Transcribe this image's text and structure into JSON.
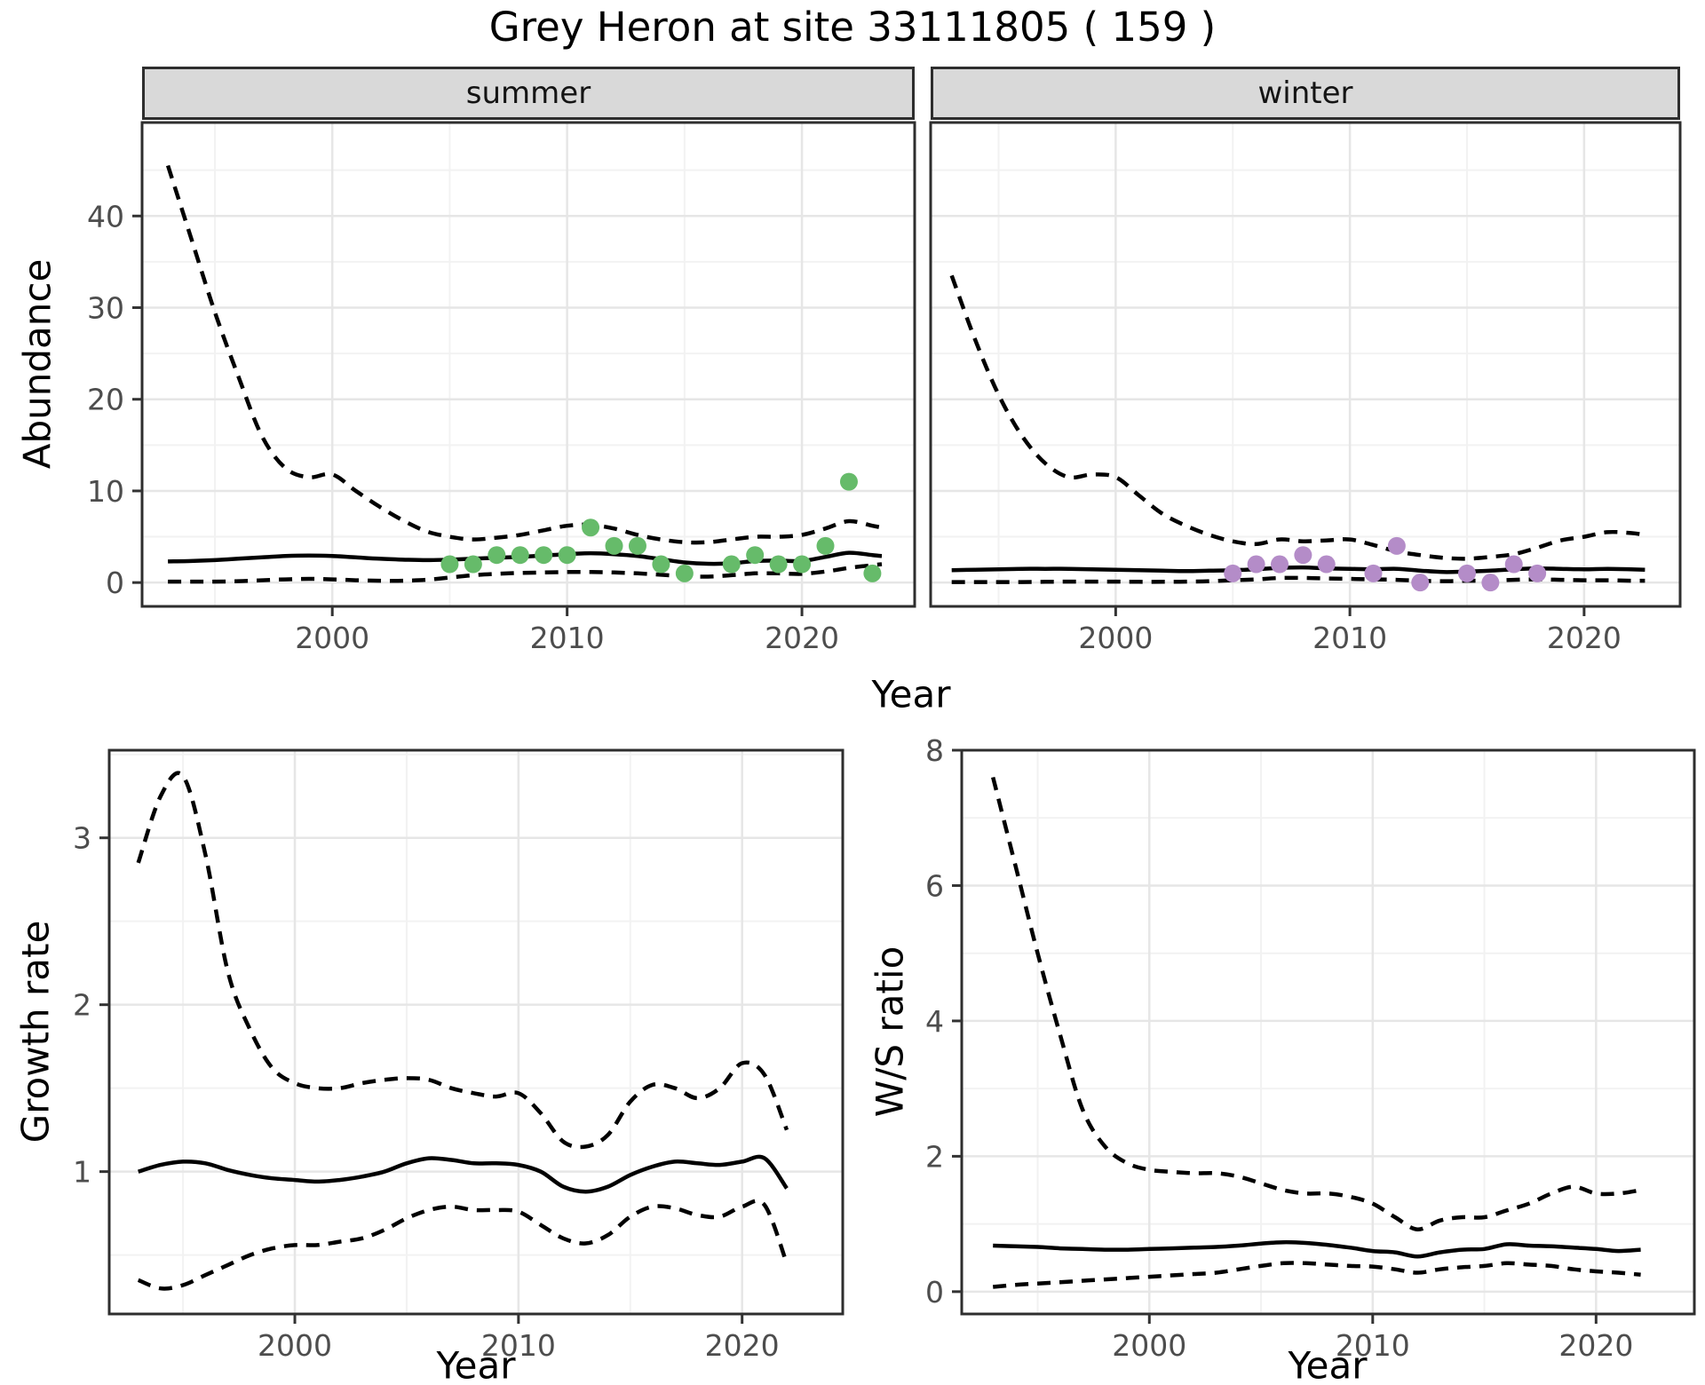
{
  "title": "Grey Heron at site 33111805 ( 159 )",
  "colors": {
    "point_summer": "#66bb6a",
    "point_winter": "#b48cc8",
    "line": "#000000",
    "strip_background": "#d9d9d9",
    "grid_major": "#e6e6e6",
    "grid_minor": "#f2f2f2",
    "tick_text": "#4d4d4d",
    "panel_border": "#2e2e2e"
  },
  "chart_data": [
    {
      "id": "abundance-summer",
      "type": "line",
      "facet": "summer",
      "xlabel": "Year",
      "ylabel": "Abundance",
      "x_domain": [
        1991.9,
        2024.8
      ],
      "y_domain": [
        -2.6,
        50.2
      ],
      "xticks": [
        2000,
        2010,
        2020
      ],
      "yticks": [
        0,
        10,
        20,
        30,
        40
      ],
      "grid": true,
      "legend": "none",
      "series": [
        {
          "name": "upper-95ci",
          "style": "dashed",
          "x": [
            1993,
            1994,
            1995,
            1996,
            1997,
            1998,
            1999,
            2000,
            2001,
            2002,
            2003,
            2004,
            2005,
            2006,
            2007,
            2008,
            2009,
            2010,
            2011,
            2012,
            2013,
            2014,
            2015,
            2016,
            2017,
            2018,
            2019,
            2020,
            2021,
            2022,
            2023,
            2023.4
          ],
          "y": [
            45.5,
            37.5,
            29.5,
            22.5,
            16.0,
            12.5,
            11.5,
            11.8,
            10.0,
            8.3,
            6.8,
            5.6,
            5.0,
            4.7,
            4.9,
            5.2,
            5.7,
            6.2,
            6.3,
            5.9,
            5.2,
            4.7,
            4.4,
            4.4,
            4.7,
            5.0,
            5.0,
            5.2,
            5.9,
            6.7,
            6.2,
            6.0
          ]
        },
        {
          "name": "fitted-index",
          "style": "solid",
          "x": [
            1993,
            1994,
            1995,
            1996,
            1997,
            1998,
            1999,
            2000,
            2001,
            2002,
            2003,
            2004,
            2005,
            2006,
            2007,
            2008,
            2009,
            2010,
            2011,
            2012,
            2013,
            2014,
            2015,
            2016,
            2017,
            2018,
            2019,
            2020,
            2021,
            2022,
            2023,
            2023.4
          ],
          "y": [
            2.3,
            2.35,
            2.45,
            2.6,
            2.75,
            2.9,
            2.95,
            2.9,
            2.75,
            2.6,
            2.5,
            2.45,
            2.5,
            2.6,
            2.7,
            2.8,
            2.95,
            3.1,
            3.2,
            3.1,
            2.9,
            2.55,
            2.2,
            2.05,
            2.1,
            2.35,
            2.4,
            2.35,
            2.8,
            3.25,
            3.0,
            2.9
          ]
        },
        {
          "name": "lower-95ci",
          "style": "dashed",
          "x": [
            1993,
            1994,
            1995,
            1996,
            1997,
            1998,
            1999,
            2000,
            2001,
            2002,
            2003,
            2004,
            2005,
            2006,
            2007,
            2008,
            2009,
            2010,
            2011,
            2012,
            2013,
            2014,
            2015,
            2016,
            2017,
            2018,
            2019,
            2020,
            2021,
            2022,
            2023,
            2023.4
          ],
          "y": [
            0.1,
            0.1,
            0.1,
            0.15,
            0.25,
            0.35,
            0.4,
            0.35,
            0.25,
            0.2,
            0.2,
            0.3,
            0.55,
            0.8,
            0.95,
            1.05,
            1.1,
            1.15,
            1.15,
            1.1,
            1.0,
            0.85,
            0.7,
            0.65,
            0.8,
            1.0,
            1.0,
            0.95,
            1.2,
            1.6,
            1.9,
            2.0
          ]
        }
      ],
      "points": {
        "name": "observed-counts-summer",
        "color": "#66bb6a",
        "x": [
          2005,
          2006,
          2007,
          2008,
          2009,
          2010,
          2011,
          2012,
          2013,
          2014,
          2015,
          2017,
          2018,
          2019,
          2020,
          2021,
          2022,
          2023
        ],
        "y": [
          2,
          2,
          3,
          3,
          3,
          3,
          6,
          4,
          4,
          2,
          1,
          2,
          3,
          2,
          2,
          4,
          11,
          1
        ]
      }
    },
    {
      "id": "abundance-winter",
      "type": "line",
      "facet": "winter",
      "xlabel": "Year",
      "ylabel": "Abundance",
      "x_domain": [
        1992.1,
        2024.1
      ],
      "y_domain": [
        -2.6,
        50.2
      ],
      "xticks": [
        2000,
        2010,
        2020
      ],
      "yticks": [
        0,
        10,
        20,
        30,
        40
      ],
      "grid": true,
      "legend": "none",
      "series": [
        {
          "name": "upper-95ci",
          "style": "dashed",
          "x": [
            1993,
            1994,
            1995,
            1996,
            1997,
            1998,
            1999,
            2000,
            2001,
            2002,
            2003,
            2004,
            2005,
            2006,
            2007,
            2008,
            2009,
            2010,
            2011,
            2012,
            2013,
            2014,
            2015,
            2016,
            2017,
            2018,
            2019,
            2020,
            2021,
            2022,
            2022.6
          ],
          "y": [
            33.5,
            26.5,
            20.5,
            16.0,
            13.0,
            11.5,
            11.8,
            11.5,
            9.5,
            7.5,
            6.2,
            5.2,
            4.5,
            4.2,
            4.7,
            4.5,
            4.6,
            4.7,
            4.1,
            3.4,
            3.0,
            2.7,
            2.6,
            2.8,
            3.1,
            3.8,
            4.6,
            5.0,
            5.5,
            5.4,
            5.2
          ]
        },
        {
          "name": "fitted-index",
          "style": "solid",
          "x": [
            1993,
            1994,
            1995,
            1996,
            1997,
            1998,
            1999,
            2000,
            2001,
            2002,
            2003,
            2004,
            2005,
            2006,
            2007,
            2008,
            2009,
            2010,
            2011,
            2012,
            2013,
            2014,
            2015,
            2016,
            2017,
            2018,
            2019,
            2020,
            2021,
            2022,
            2022.6
          ],
          "y": [
            1.35,
            1.4,
            1.45,
            1.5,
            1.5,
            1.5,
            1.45,
            1.4,
            1.35,
            1.3,
            1.25,
            1.3,
            1.35,
            1.45,
            1.6,
            1.65,
            1.55,
            1.5,
            1.45,
            1.5,
            1.3,
            1.15,
            1.2,
            1.3,
            1.45,
            1.55,
            1.5,
            1.45,
            1.5,
            1.45,
            1.4
          ]
        },
        {
          "name": "lower-95ci",
          "style": "dashed",
          "x": [
            1993,
            1994,
            1995,
            1996,
            1997,
            1998,
            1999,
            2000,
            2001,
            2002,
            2003,
            2004,
            2005,
            2006,
            2007,
            2008,
            2009,
            2010,
            2011,
            2012,
            2013,
            2014,
            2015,
            2016,
            2017,
            2018,
            2019,
            2020,
            2021,
            2022,
            2022.6
          ],
          "y": [
            0.05,
            0.05,
            0.05,
            0.05,
            0.08,
            0.1,
            0.1,
            0.1,
            0.08,
            0.08,
            0.1,
            0.15,
            0.25,
            0.35,
            0.5,
            0.5,
            0.45,
            0.4,
            0.35,
            0.3,
            0.2,
            0.15,
            0.2,
            0.2,
            0.3,
            0.35,
            0.3,
            0.25,
            0.25,
            0.2,
            0.2
          ]
        }
      ],
      "points": {
        "name": "observed-counts-winter",
        "color": "#b48cc8",
        "x": [
          2005,
          2006,
          2007,
          2008,
          2009,
          2011,
          2012,
          2013,
          2015,
          2016,
          2017,
          2018
        ],
        "y": [
          1,
          2,
          2,
          3,
          2,
          1,
          4,
          0,
          1,
          0,
          2,
          1
        ]
      }
    },
    {
      "id": "growth-rate",
      "type": "line",
      "facet": null,
      "xlabel": "Year",
      "ylabel": "Growth rate",
      "x_domain": [
        1991.7,
        2024.5
      ],
      "y_domain": [
        0.147,
        3.525
      ],
      "xticks": [
        2000,
        2010,
        2020
      ],
      "yticks": [
        1,
        2,
        3
      ],
      "grid": true,
      "legend": "none",
      "series": [
        {
          "name": "upper-95ci",
          "style": "dashed",
          "x": [
            1993,
            1994,
            1995,
            1996,
            1997,
            1998,
            1999,
            2000,
            2001,
            2002,
            2003,
            2004,
            2005,
            2006,
            2007,
            2008,
            2009,
            2010,
            2011,
            2012,
            2013,
            2014,
            2015,
            2016,
            2017,
            2018,
            2019,
            2020,
            2021,
            2022
          ],
          "y": [
            2.85,
            3.25,
            3.37,
            2.9,
            2.2,
            1.85,
            1.62,
            1.53,
            1.5,
            1.5,
            1.53,
            1.55,
            1.56,
            1.55,
            1.5,
            1.47,
            1.45,
            1.47,
            1.35,
            1.18,
            1.15,
            1.22,
            1.42,
            1.52,
            1.5,
            1.44,
            1.5,
            1.65,
            1.58,
            1.25
          ]
        },
        {
          "name": "fitted-growth-rate",
          "style": "solid",
          "x": [
            1993,
            1994,
            1995,
            1996,
            1997,
            1998,
            1999,
            2000,
            2001,
            2002,
            2003,
            2004,
            2005,
            2006,
            2007,
            2008,
            2009,
            2010,
            2011,
            2012,
            2013,
            2014,
            2015,
            2016,
            2017,
            2018,
            2019,
            2020,
            2021,
            2022
          ],
          "y": [
            1.0,
            1.04,
            1.06,
            1.05,
            1.01,
            0.98,
            0.96,
            0.95,
            0.94,
            0.95,
            0.97,
            1.0,
            1.05,
            1.08,
            1.07,
            1.05,
            1.05,
            1.04,
            1.0,
            0.91,
            0.88,
            0.91,
            0.98,
            1.03,
            1.06,
            1.05,
            1.04,
            1.06,
            1.08,
            0.9
          ]
        },
        {
          "name": "lower-95ci",
          "style": "dashed",
          "x": [
            1993,
            1994,
            1995,
            1996,
            1997,
            1998,
            1999,
            2000,
            2001,
            2002,
            2003,
            2004,
            2005,
            2006,
            2007,
            2008,
            2009,
            2010,
            2011,
            2012,
            2013,
            2014,
            2015,
            2016,
            2017,
            2018,
            2019,
            2020,
            2021,
            2022
          ],
          "y": [
            0.35,
            0.3,
            0.32,
            0.38,
            0.44,
            0.5,
            0.54,
            0.56,
            0.56,
            0.58,
            0.6,
            0.65,
            0.72,
            0.77,
            0.79,
            0.77,
            0.77,
            0.76,
            0.68,
            0.6,
            0.57,
            0.62,
            0.73,
            0.79,
            0.78,
            0.74,
            0.73,
            0.79,
            0.8,
            0.45
          ]
        }
      ],
      "points": null
    },
    {
      "id": "ws-ratio",
      "type": "line",
      "facet": null,
      "xlabel": "Year",
      "ylabel": "W/S ratio",
      "x_domain": [
        1991.6,
        2024.4
      ],
      "y_domain": [
        -0.33,
        8.0
      ],
      "xticks": [
        2000,
        2010,
        2020
      ],
      "yticks": [
        0,
        2,
        4,
        6,
        8
      ],
      "grid": true,
      "legend": "none",
      "series": [
        {
          "name": "upper-95ci",
          "style": "dashed",
          "x": [
            1993,
            1994,
            1995,
            1996,
            1997,
            1998,
            1999,
            2000,
            2001,
            2002,
            2003,
            2004,
            2005,
            2006,
            2007,
            2008,
            2009,
            2010,
            2011,
            2012,
            2013,
            2014,
            2015,
            2016,
            2017,
            2018,
            2019,
            2020,
            2021,
            2022
          ],
          "y": [
            7.6,
            6.3,
            5.0,
            3.8,
            2.7,
            2.15,
            1.9,
            1.8,
            1.77,
            1.75,
            1.75,
            1.7,
            1.6,
            1.5,
            1.45,
            1.45,
            1.4,
            1.3,
            1.1,
            0.92,
            1.05,
            1.1,
            1.1,
            1.2,
            1.3,
            1.45,
            1.55,
            1.45,
            1.45,
            1.5
          ]
        },
        {
          "name": "fitted-ws-ratio",
          "style": "solid",
          "x": [
            1993,
            1994,
            1995,
            1996,
            1997,
            1998,
            1999,
            2000,
            2001,
            2002,
            2003,
            2004,
            2005,
            2006,
            2007,
            2008,
            2009,
            2010,
            2011,
            2012,
            2013,
            2014,
            2015,
            2016,
            2017,
            2018,
            2019,
            2020,
            2021,
            2022
          ],
          "y": [
            0.68,
            0.67,
            0.66,
            0.64,
            0.63,
            0.62,
            0.62,
            0.63,
            0.64,
            0.65,
            0.66,
            0.68,
            0.71,
            0.73,
            0.72,
            0.69,
            0.65,
            0.6,
            0.58,
            0.52,
            0.58,
            0.62,
            0.63,
            0.7,
            0.68,
            0.67,
            0.65,
            0.63,
            0.6,
            0.62
          ]
        },
        {
          "name": "lower-95ci",
          "style": "dashed",
          "x": [
            1993,
            1994,
            1995,
            1996,
            1997,
            1998,
            1999,
            2000,
            2001,
            2002,
            2003,
            2004,
            2005,
            2006,
            2007,
            2008,
            2009,
            2010,
            2011,
            2012,
            2013,
            2014,
            2015,
            2016,
            2017,
            2018,
            2019,
            2020,
            2021,
            2022
          ],
          "y": [
            0.07,
            0.1,
            0.12,
            0.14,
            0.16,
            0.18,
            0.2,
            0.22,
            0.24,
            0.26,
            0.28,
            0.33,
            0.38,
            0.42,
            0.42,
            0.4,
            0.38,
            0.37,
            0.33,
            0.28,
            0.33,
            0.36,
            0.38,
            0.42,
            0.4,
            0.38,
            0.33,
            0.3,
            0.28,
            0.25
          ]
        }
      ],
      "points": null
    }
  ]
}
